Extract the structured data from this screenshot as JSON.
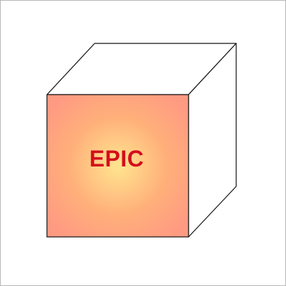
{
  "cube": {
    "label": "EPIC"
  },
  "colors": {
    "front_center": "#ffe590",
    "front_mid": "#ffb07a",
    "front_edge": "#ff9a82",
    "label": "#d40e1c",
    "outline": "#111111",
    "side_faces": "#ffffff",
    "frame_border": "#b8b8b8"
  }
}
